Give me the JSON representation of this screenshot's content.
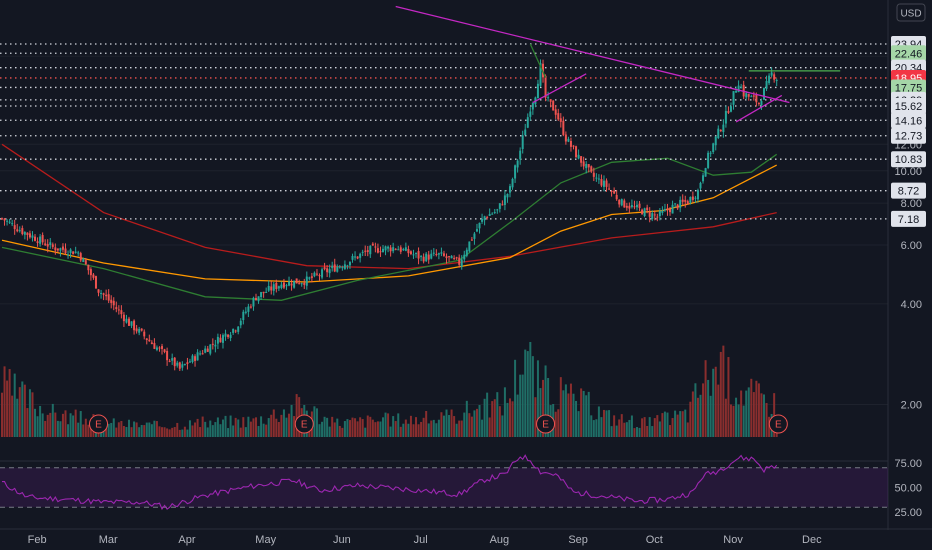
{
  "currency": "USD",
  "chart_data": {
    "type": "candlestick",
    "y_scale": "log",
    "ylim": [
      1.2,
      31
    ],
    "price_ticks": [
      2.0,
      4.0,
      6.0,
      8.0,
      10.0,
      12.0,
      22.0
    ],
    "x_ticks": [
      "Feb",
      "Mar",
      "Apr",
      "May",
      "Jun",
      "Jul",
      "Aug",
      "Sep",
      "Oct",
      "Nov",
      "Dec"
    ],
    "levels": [
      {
        "label": "23.94",
        "value": 23.94,
        "color": "#d1d4dc",
        "tag_bg": "#e0e3eb",
        "tag_fg": "#131722"
      },
      {
        "label": "22.46",
        "value": 22.46,
        "color": "#d1d4dc",
        "tag_bg": "#a5d6a7",
        "tag_fg": "#131722"
      },
      {
        "label": "20.34",
        "value": 20.34,
        "color": "#d1d4dc",
        "tag_bg": "#e0e3eb",
        "tag_fg": "#131722"
      },
      {
        "label": "18.95",
        "value": 18.95,
        "color": "#ef5350",
        "tag_bg": "#f23645",
        "tag_fg": "#ffffff"
      },
      {
        "label": "17.75",
        "value": 17.75,
        "color": "#d1d4dc",
        "tag_bg": "#a5d6a7",
        "tag_fg": "#131722"
      },
      {
        "label": "16.29",
        "value": 16.29,
        "color": "#d1d4dc",
        "tag_bg": "#e0e3eb",
        "tag_fg": "#131722"
      },
      {
        "label": "15.62",
        "value": 15.62,
        "color": "#d1d4dc",
        "tag_bg": "#e0e3eb",
        "tag_fg": "#131722"
      },
      {
        "label": "14.16",
        "value": 14.16,
        "color": "#d1d4dc",
        "tag_bg": "#e0e3eb",
        "tag_fg": "#131722"
      },
      {
        "label": "12.73",
        "value": 12.73,
        "color": "#d1d4dc",
        "tag_bg": "#e0e3eb",
        "tag_fg": "#131722"
      },
      {
        "label": "10.83",
        "value": 10.83,
        "color": "#d1d4dc",
        "tag_bg": "#e0e3eb",
        "tag_fg": "#131722"
      },
      {
        "label": "8.72",
        "value": 8.72,
        "color": "#d1d4dc",
        "tag_bg": "#e0e3eb",
        "tag_fg": "#131722"
      },
      {
        "label": "7.18",
        "value": 7.18,
        "color": "#d1d4dc",
        "tag_bg": "#e0e3eb",
        "tag_fg": "#131722"
      }
    ],
    "close_anchors": [
      [
        0,
        7.2
      ],
      [
        8,
        6.6
      ],
      [
        20,
        5.9
      ],
      [
        30,
        5.7
      ],
      [
        38,
        4.4
      ],
      [
        50,
        3.5
      ],
      [
        60,
        3.0
      ],
      [
        70,
        2.55
      ],
      [
        82,
        3.0
      ],
      [
        92,
        3.4
      ],
      [
        100,
        4.2
      ],
      [
        110,
        4.6
      ],
      [
        120,
        4.7
      ],
      [
        125,
        4.9
      ],
      [
        135,
        5.3
      ],
      [
        145,
        5.8
      ],
      [
        155,
        5.9
      ],
      [
        165,
        5.5
      ],
      [
        172,
        5.6
      ],
      [
        180,
        5.3
      ],
      [
        187,
        6.7
      ],
      [
        190,
        7.3
      ],
      [
        195,
        7.6
      ],
      [
        200,
        8.8
      ],
      [
        204,
        11.5
      ],
      [
        208,
        15.5
      ],
      [
        210,
        17.0
      ],
      [
        212,
        20.5
      ],
      [
        214,
        16.5
      ],
      [
        218,
        15.0
      ],
      [
        222,
        12.5
      ],
      [
        226,
        11.2
      ],
      [
        232,
        9.7
      ],
      [
        238,
        9.0
      ],
      [
        244,
        8.0
      ],
      [
        252,
        7.6
      ],
      [
        258,
        7.3
      ],
      [
        264,
        7.8
      ],
      [
        270,
        8.1
      ],
      [
        274,
        8.7
      ],
      [
        277,
        10.5
      ],
      [
        280,
        12.0
      ],
      [
        284,
        14.0
      ],
      [
        287,
        16.0
      ],
      [
        290,
        18.5
      ],
      [
        292,
        17.0
      ],
      [
        295,
        16.5
      ],
      [
        298,
        16.0
      ],
      [
        300,
        17.3
      ],
      [
        303,
        19.5
      ],
      [
        305,
        18.95
      ]
    ],
    "volume_anchors": [
      [
        0,
        0.55
      ],
      [
        20,
        0.25
      ],
      [
        40,
        0.15
      ],
      [
        60,
        0.12
      ],
      [
        80,
        0.15
      ],
      [
        100,
        0.18
      ],
      [
        118,
        0.35
      ],
      [
        130,
        0.15
      ],
      [
        150,
        0.18
      ],
      [
        175,
        0.2
      ],
      [
        185,
        0.3
      ],
      [
        195,
        0.35
      ],
      [
        200,
        0.45
      ],
      [
        206,
        1.0
      ],
      [
        210,
        0.6
      ],
      [
        220,
        0.45
      ],
      [
        230,
        0.35
      ],
      [
        240,
        0.2
      ],
      [
        255,
        0.15
      ],
      [
        270,
        0.25
      ],
      [
        276,
        0.6
      ],
      [
        282,
        0.75
      ],
      [
        288,
        0.55
      ],
      [
        295,
        0.45
      ],
      [
        305,
        0.35
      ]
    ],
    "moving_averages": [
      {
        "name": "MA red",
        "color": "#b71c1c",
        "points": [
          [
            0,
            12.0
          ],
          [
            40,
            7.5
          ],
          [
            80,
            5.9
          ],
          [
            120,
            5.2
          ],
          [
            160,
            5.1
          ],
          [
            200,
            5.55
          ],
          [
            240,
            6.3
          ],
          [
            280,
            6.8
          ],
          [
            305,
            7.5
          ]
        ]
      },
      {
        "name": "MA orange",
        "color": "#ff9800",
        "points": [
          [
            0,
            6.2
          ],
          [
            40,
            5.3
          ],
          [
            80,
            4.75
          ],
          [
            120,
            4.65
          ],
          [
            160,
            4.85
          ],
          [
            200,
            5.5
          ],
          [
            220,
            6.6
          ],
          [
            240,
            7.4
          ],
          [
            260,
            7.6
          ],
          [
            280,
            8.3
          ],
          [
            305,
            10.4
          ]
        ]
      },
      {
        "name": "MA green",
        "color": "#2e7d32",
        "points": [
          [
            0,
            5.9
          ],
          [
            40,
            5.1
          ],
          [
            80,
            4.2
          ],
          [
            110,
            4.1
          ],
          [
            140,
            4.7
          ],
          [
            180,
            5.4
          ],
          [
            200,
            7.0
          ],
          [
            220,
            9.2
          ],
          [
            240,
            10.6
          ],
          [
            262,
            10.9
          ],
          [
            280,
            9.7
          ],
          [
            295,
            9.9
          ],
          [
            305,
            11.2
          ]
        ]
      }
    ],
    "trendlines": [
      {
        "from": [
          155,
          31.0
        ],
        "to": [
          310,
          16.0
        ],
        "color": "#c428c4"
      },
      {
        "from": [
          209,
          16.0
        ],
        "to": [
          230,
          19.5
        ],
        "color": "#c428c4"
      },
      {
        "from": [
          208,
          23.94
        ],
        "to": [
          214,
          19.0
        ],
        "color": "#2e7d32"
      },
      {
        "from": [
          289,
          14.0
        ],
        "to": [
          307,
          16.8
        ],
        "color": "#c428c4"
      },
      {
        "from": [
          294,
          19.9
        ],
        "to": [
          330,
          19.9
        ],
        "color": "#4caf50"
      }
    ],
    "earnings_markers": [
      38,
      119,
      214,
      308
    ],
    "earnings_label": "E",
    "rsi": {
      "ticks": [
        25.0,
        50.0,
        75.0
      ],
      "ylim": [
        15,
        92
      ],
      "band": [
        30,
        70
      ],
      "anchors": [
        [
          0,
          55
        ],
        [
          10,
          40
        ],
        [
          25,
          38
        ],
        [
          40,
          35
        ],
        [
          55,
          35
        ],
        [
          65,
          30
        ],
        [
          80,
          42
        ],
        [
          100,
          52
        ],
        [
          115,
          57
        ],
        [
          125,
          47
        ],
        [
          140,
          52
        ],
        [
          165,
          47
        ],
        [
          180,
          43
        ],
        [
          190,
          58
        ],
        [
          198,
          63
        ],
        [
          204,
          82
        ],
        [
          208,
          78
        ],
        [
          212,
          66
        ],
        [
          218,
          63
        ],
        [
          225,
          45
        ],
        [
          235,
          42
        ],
        [
          250,
          36
        ],
        [
          262,
          38
        ],
        [
          272,
          45
        ],
        [
          276,
          62
        ],
        [
          282,
          67
        ],
        [
          290,
          80
        ],
        [
          296,
          79
        ],
        [
          300,
          68
        ],
        [
          302,
          70
        ],
        [
          305,
          72
        ]
      ]
    }
  }
}
